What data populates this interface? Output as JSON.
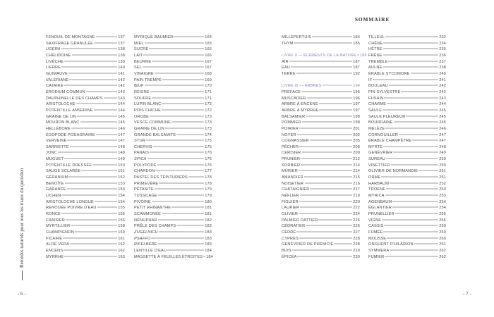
{
  "header": {
    "title": "SOMMAIRE"
  },
  "running_title": "Remèdes naturels pour tous les maux du quotidien",
  "folios": {
    "left": "- 6 -",
    "right": "- 7 -"
  },
  "colors": {
    "text": "#4a4a4a",
    "section": "#8f80c8"
  },
  "columns": [
    [
      {
        "label": "FENOUIL DE MONTAGNE",
        "page": "137"
      },
      {
        "label": "SAXIFRAGE GRANULÉE",
        "page": "137"
      },
      {
        "label": "UGERA",
        "page": "138",
        "italic": true
      },
      {
        "label": "CHÉLIDOINE",
        "page": "138"
      },
      {
        "label": "LIVÈCHE",
        "page": "139"
      },
      {
        "label": "LIERRE",
        "page": "140"
      },
      {
        "label": "GUIMAUVE",
        "page": "141"
      },
      {
        "label": "VALÉRIANE",
        "page": "142"
      },
      {
        "label": "CATAIRE",
        "page": "142"
      },
      {
        "label": "ÉRODIUM COMMUN",
        "page": "143"
      },
      {
        "label": "DAUPHINELLE DES CHAMPS",
        "page": "143"
      },
      {
        "label": "ARISTOLOCHE",
        "page": "144"
      },
      {
        "label": "POTENTILLE ANSÉRINE",
        "page": "144"
      },
      {
        "label": "GRAINE DE LIN",
        "page": "145"
      },
      {
        "label": "MOURON BLANC",
        "page": "145"
      },
      {
        "label": "HELLÉBORE",
        "page": "146"
      },
      {
        "label": "ÉGOPODE PODAGRAIRE",
        "page": "147"
      },
      {
        "label": "VERVEINE",
        "page": "147"
      },
      {
        "label": "SARRIETTE",
        "page": "148"
      },
      {
        "label": "JONC",
        "page": "148"
      },
      {
        "label": "MUGUET",
        "page": "149"
      },
      {
        "label": "POTENTILLE DRESSÉE",
        "page": "150"
      },
      {
        "label": "SAUGE SCLARÉE",
        "page": "151"
      },
      {
        "label": "GÉRANIUM",
        "page": "152"
      },
      {
        "label": "BENOÎTE",
        "page": "153"
      },
      {
        "label": "GARANCE",
        "page": "153"
      },
      {
        "label": "LICHEN",
        "page": "154"
      },
      {
        "label": "ARISTOLOCHE LONGUE",
        "page": "154"
      },
      {
        "label": "RENOUÉE POIVRE D'EAU",
        "page": "155"
      },
      {
        "label": "RONCE",
        "page": "155"
      },
      {
        "label": "FRAISIER",
        "page": "156"
      },
      {
        "label": "MYRTILLIER",
        "page": "158"
      },
      {
        "label": "CHAMPIGNON",
        "page": "159"
      },
      {
        "label": "FICAIRE",
        "page": "161"
      },
      {
        "label": "ALOE VERA",
        "page": "162"
      },
      {
        "label": "ENCENS",
        "page": "162"
      },
      {
        "label": "MYRRHE",
        "page": "163"
      }
    ],
    [
      {
        "label": "MYRIQUE BAUMIER",
        "page": "164"
      },
      {
        "label": "MIEL",
        "page": "165"
      },
      {
        "label": "SUCRE",
        "page": "166"
      },
      {
        "label": "LAIT",
        "page": "166"
      },
      {
        "label": "BEURRE",
        "page": "167"
      },
      {
        "label": "SEL",
        "page": "167"
      },
      {
        "label": "VINAIGRE",
        "page": "168"
      },
      {
        "label": "PAIN TREMPÉ",
        "page": "169"
      },
      {
        "label": "ŒUF",
        "page": "170"
      },
      {
        "label": "RÉSINE",
        "page": "171"
      },
      {
        "label": "SOUFRE",
        "page": "171"
      },
      {
        "label": "LUPIN BLANC",
        "page": "172"
      },
      {
        "label": "POIS CHICHE",
        "page": "172"
      },
      {
        "label": "OROBE",
        "page": "173"
      },
      {
        "label": "VESCE COMMUNE",
        "page": "173"
      },
      {
        "label": "GRAINE DE LIN",
        "page": "173"
      },
      {
        "label": "GRANDE BALSAMITE",
        "page": "174"
      },
      {
        "label": "STUR",
        "page": "175",
        "italic": true
      },
      {
        "label": "CHERVIS",
        "page": "175"
      },
      {
        "label": "PANAIS",
        "page": "176"
      },
      {
        "label": "SPICA",
        "page": "176",
        "italic": true
      },
      {
        "label": "POLYPODE",
        "page": "176"
      },
      {
        "label": "CHARDON",
        "page": "177"
      },
      {
        "label": "PASTEL DES TEINTURIERS",
        "page": "178"
      },
      {
        "label": "PRIMEVÈRE",
        "page": "178"
      },
      {
        "label": "PÉTASITE",
        "page": "179"
      },
      {
        "label": "TUSSILAGE",
        "page": "179"
      },
      {
        "label": "PIVOINE",
        "page": "180"
      },
      {
        "label": "PETIT RHINANTHE",
        "page": "181"
      },
      {
        "label": "SCAMMONÉE",
        "page": "181"
      },
      {
        "label": "NÉNUPHAR",
        "page": "182"
      },
      {
        "label": "PRÊLE DES CHAMPS",
        "page": "182"
      },
      {
        "label": "ZUGELNICH",
        "page": "183",
        "italic": true
      },
      {
        "label": "PSAFFO",
        "page": "183",
        "italic": true
      },
      {
        "label": "RIFELBERE",
        "page": "183",
        "italic": true
      },
      {
        "label": "LENTILLE D'EAU",
        "page": "184"
      },
      {
        "label": "MASSETTE À FEUILLES ÉTROITES",
        "page": "184"
      }
    ],
    [
      {
        "label": "MILLEPERTUIS",
        "page": "184"
      },
      {
        "label": "THYM",
        "page": "185"
      },
      {
        "label": "",
        "page": "",
        "blank": true
      },
      {
        "label": "LIVRE II — ÉLÉMENTS DE LA NATURE",
        "page": "186",
        "section": true
      },
      {
        "label": "AIR",
        "page": "187"
      },
      {
        "label": "EAU",
        "page": "187"
      },
      {
        "label": "TERRE",
        "page": "192"
      },
      {
        "label": "",
        "page": "",
        "blank": true
      },
      {
        "label": "LIVRE III — ARBRES",
        "page": "194",
        "section": true
      },
      {
        "label": "PRÉFACE",
        "page": "195"
      },
      {
        "label": "MUSCADIER",
        "page": "196"
      },
      {
        "label": "ARBRE À ENCENS",
        "page": "197"
      },
      {
        "label": "ARBRE À MYRRHE",
        "page": "197"
      },
      {
        "label": "BALSAMIER",
        "page": "198"
      },
      {
        "label": "POMMIER",
        "page": "198"
      },
      {
        "label": "POIRIER",
        "page": "201"
      },
      {
        "label": "NOYER",
        "page": "202"
      },
      {
        "label": "COGNASSIER",
        "page": "205"
      },
      {
        "label": "PÊCHER",
        "page": "206"
      },
      {
        "label": "CERISIER",
        "page": "209"
      },
      {
        "label": "PRUNIER",
        "page": "212"
      },
      {
        "label": "SORBIER",
        "page": "214"
      },
      {
        "label": "MÛRIER",
        "page": "214"
      },
      {
        "label": "AMANDIER",
        "page": "215"
      },
      {
        "label": "NOISETIER",
        "page": "216"
      },
      {
        "label": "CHÂTAIGNIER",
        "page": "217"
      },
      {
        "label": "NÉFLIER",
        "page": "219"
      },
      {
        "label": "FIGUIER",
        "page": "220"
      },
      {
        "label": "LAURIER",
        "page": "222"
      },
      {
        "label": "OLIVIER",
        "page": "224"
      },
      {
        "label": "PALMIER DATTIER",
        "page": "226"
      },
      {
        "label": "CÉDRATIER",
        "page": "226"
      },
      {
        "label": "CÈDRE",
        "page": "227"
      },
      {
        "label": "CYPRÈS",
        "page": "228"
      },
      {
        "label": "GENÉVRIER DE PHÉNICIE",
        "page": "228"
      },
      {
        "label": "BUIS",
        "page": "229"
      },
      {
        "label": "ÉPICÉA",
        "page": "230"
      }
    ],
    [
      {
        "label": "TILLEUL",
        "page": "232"
      },
      {
        "label": "CHÊNE",
        "page": "234"
      },
      {
        "label": "HÊTRE",
        "page": "235"
      },
      {
        "label": "FRÊNE",
        "page": "236"
      },
      {
        "label": "TREMBLE",
        "page": "237"
      },
      {
        "label": "AULNE",
        "page": "238"
      },
      {
        "label": "ÉRABLE SYCOMORE",
        "page": "240"
      },
      {
        "label": "IF",
        "page": "241"
      },
      {
        "label": "BOULEAU",
        "page": "242"
      },
      {
        "label": "PIN SYLVESTRE",
        "page": "242"
      },
      {
        "label": "FUSAIN",
        "page": "243"
      },
      {
        "label": "CHARME",
        "page": "244"
      },
      {
        "label": "SAULE",
        "page": "245"
      },
      {
        "label": "SAULE PLEUREUR",
        "page": "245"
      },
      {
        "label": "BOURDAINE",
        "page": "245"
      },
      {
        "label": "MÉLÈZE",
        "page": "246"
      },
      {
        "label": "CORNOUILLER",
        "page": "247"
      },
      {
        "label": "ÉRABLE CHAMPÊTRE",
        "page": "247"
      },
      {
        "label": "MYRTE",
        "page": "248"
      },
      {
        "label": "GENÉVRIER",
        "page": "249"
      },
      {
        "label": "SUREAU",
        "page": "250"
      },
      {
        "label": "VINETTIER",
        "page": "250"
      },
      {
        "label": "OLIVIER DE NORMANDIE",
        "page": "251"
      },
      {
        "label": "ORME",
        "page": "251"
      },
      {
        "label": "HARBAUM",
        "page": "252"
      },
      {
        "label": "TROÈNE",
        "page": "253"
      },
      {
        "label": "MYRICA",
        "page": "253"
      },
      {
        "label": "AGENBAUM",
        "page": "254"
      },
      {
        "label": "ÉGLANTIER",
        "page": "254"
      },
      {
        "label": "PRUNELLIER",
        "page": "255"
      },
      {
        "label": "VIGNE",
        "page": "256"
      },
      {
        "label": "CASSIS",
        "page": "259"
      },
      {
        "label": "FUMÉE",
        "page": "259"
      },
      {
        "label": "MOUSSE",
        "page": "260"
      },
      {
        "label": "ONGUENT D'HILARION",
        "page": "261"
      },
      {
        "label": "SYMMERA",
        "page": "262"
      },
      {
        "label": "FUMIER",
        "page": "262"
      }
    ]
  ]
}
